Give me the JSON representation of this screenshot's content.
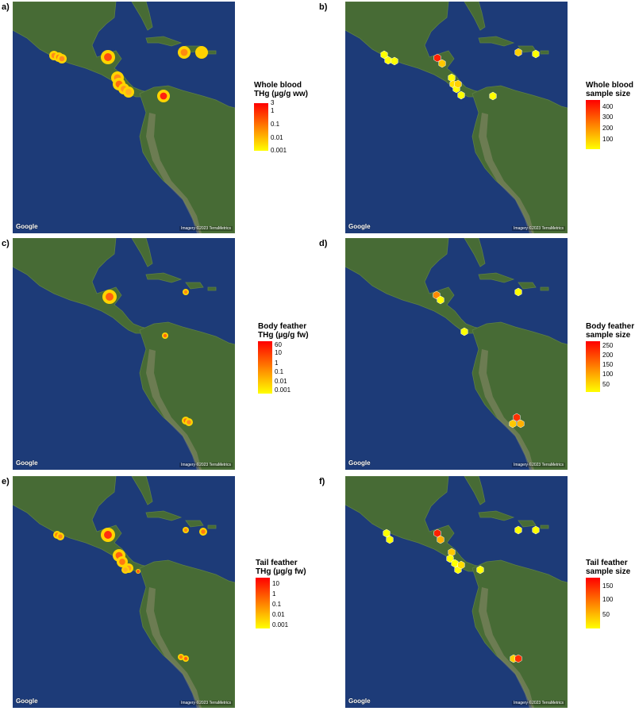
{
  "map_attribution": {
    "logo": "Google",
    "imagery": "Imagery ©2023 TerraMetrics"
  },
  "colors": {
    "ocean": "#1d3b78",
    "land": "#476b35",
    "scale_high": "#ff0000",
    "scale_mid": "#ff8000",
    "scale_low": "#ffff00"
  },
  "panels": [
    {
      "label": "a)",
      "legend": {
        "title_1": "Whole blood",
        "title_2": "THg (µg/g ww)",
        "ticks": [
          "3",
          "1",
          "0.1",
          "0.01",
          "0.001"
        ]
      }
    },
    {
      "label": "b)",
      "legend": {
        "title_1": "Whole blood",
        "title_2": "sample size",
        "ticks": [
          "400",
          "300",
          "200",
          "100"
        ]
      }
    },
    {
      "label": "c)",
      "legend": {
        "title_1": "Body feather",
        "title_2": "THg (µg/g fw)",
        "ticks": [
          "60",
          "10",
          "1",
          "0.1",
          "0.01",
          "0.001"
        ]
      }
    },
    {
      "label": "d)",
      "legend": {
        "title_1": "Body feather",
        "title_2": "sample size",
        "ticks": [
          "250",
          "200",
          "150",
          "100",
          "50"
        ]
      }
    },
    {
      "label": "e)",
      "legend": {
        "title_1": "Tail feather",
        "title_2": "THg (µg/g fw)",
        "ticks": [
          "10",
          "1",
          "0.1",
          "0.01",
          "0.001"
        ]
      }
    },
    {
      "label": "f)",
      "legend": {
        "title_1": "Tail feather",
        "title_2": "sample size",
        "ticks": [
          "150",
          "100",
          "50"
        ]
      }
    }
  ]
}
